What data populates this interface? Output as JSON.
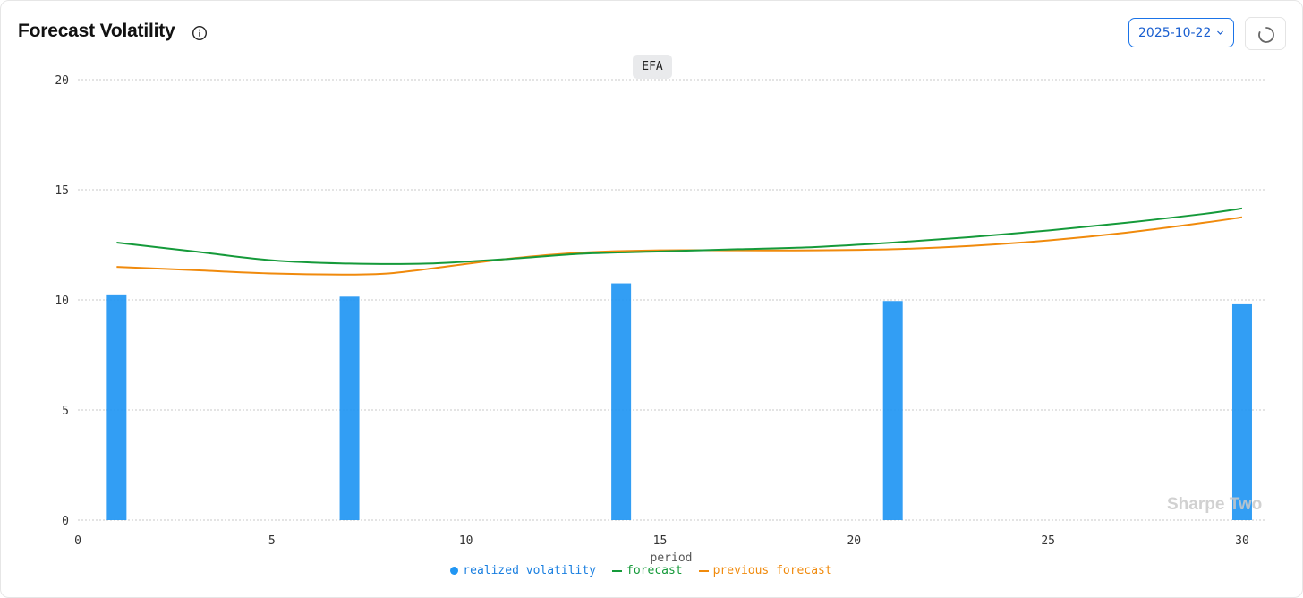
{
  "header": {
    "title": "Forecast Volatility",
    "date_value": "2025-10-22"
  },
  "icons": {
    "info": "info-icon",
    "chevron": "chevron-down-icon",
    "refresh": "refresh-spinner-icon"
  },
  "ticker": "EFA",
  "watermark": "Sharpe Two",
  "colors": {
    "realized": "#2196f3",
    "forecast": "#159a3a",
    "previous": "#f08a0c",
    "date_accent": "#1a73e8"
  },
  "chart_data": {
    "type": "bar",
    "xlabel": "period",
    "ylabel": "",
    "xlim": [
      0,
      30.6
    ],
    "ylim": [
      0,
      20
    ],
    "x_ticks": [
      0,
      5,
      10,
      15,
      20,
      25,
      30
    ],
    "y_ticks": [
      0,
      5,
      10,
      15,
      20
    ],
    "grid": true,
    "legend_position": "bottom",
    "series": [
      {
        "name": "realized volatility",
        "type": "bar",
        "x": [
          1,
          7,
          14,
          21,
          30
        ],
        "values": [
          10.25,
          10.15,
          10.75,
          9.95,
          9.8
        ]
      },
      {
        "name": "forecast",
        "type": "line",
        "x": [
          1,
          3,
          5,
          7,
          9,
          11,
          13,
          15,
          17,
          19,
          21,
          23,
          25,
          27,
          29,
          30
        ],
        "values": [
          12.6,
          12.2,
          11.8,
          11.65,
          11.65,
          11.85,
          12.1,
          12.2,
          12.3,
          12.4,
          12.6,
          12.85,
          13.15,
          13.5,
          13.9,
          14.15
        ]
      },
      {
        "name": "previous forecast",
        "type": "line",
        "x": [
          1,
          3,
          5,
          7,
          8,
          9,
          11,
          13,
          15,
          17,
          19,
          21,
          23,
          25,
          27,
          29,
          30
        ],
        "values": [
          11.5,
          11.35,
          11.2,
          11.15,
          11.2,
          11.4,
          11.85,
          12.15,
          12.25,
          12.25,
          12.25,
          12.3,
          12.45,
          12.7,
          13.05,
          13.5,
          13.75
        ]
      }
    ]
  }
}
